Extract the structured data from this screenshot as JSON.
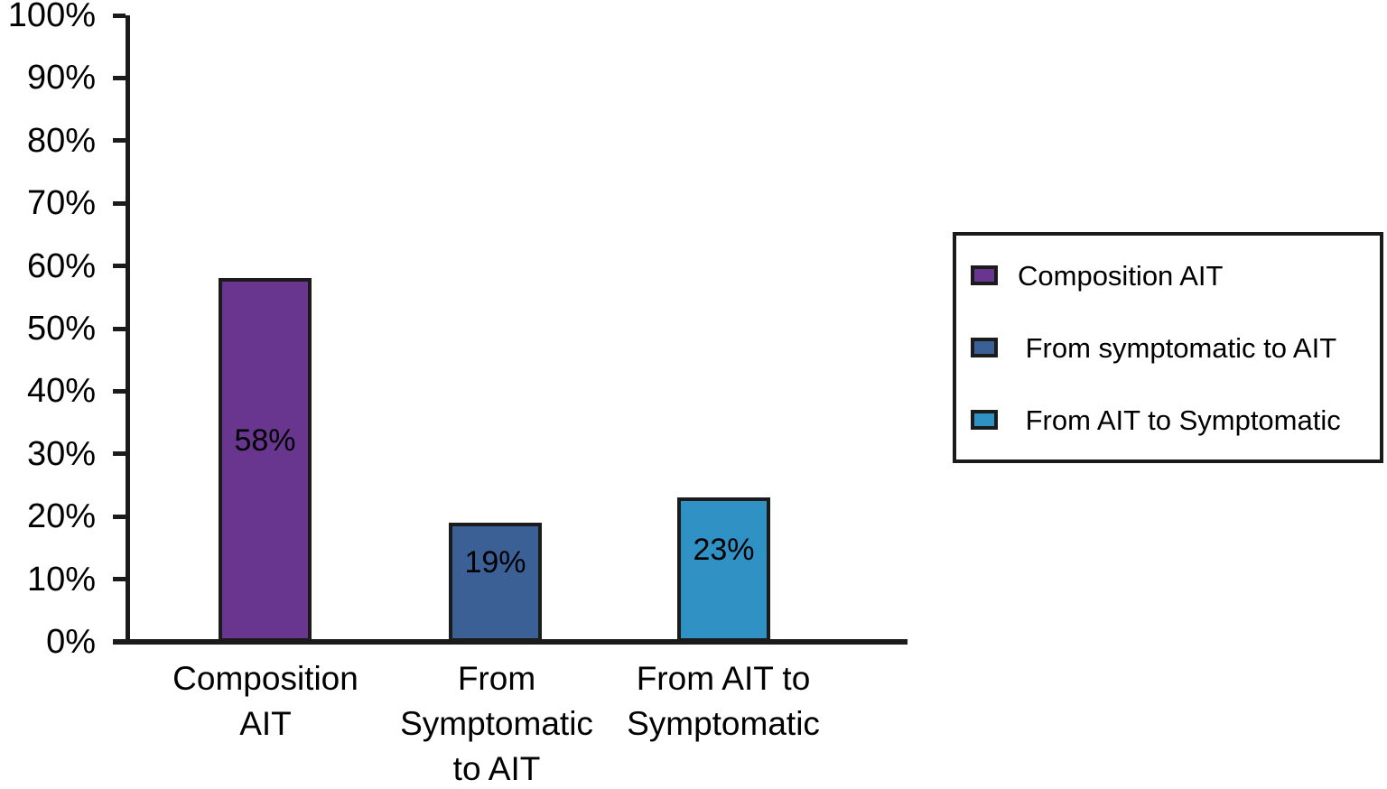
{
  "chart_data": {
    "type": "bar",
    "title": "",
    "xlabel": "",
    "ylabel": "",
    "ylim": [
      0,
      100
    ],
    "ytick_step": 10,
    "ytick_labels": [
      "0%",
      "10%",
      "20%",
      "30%",
      "40%",
      "50%",
      "60%",
      "70%",
      "80%",
      "90%",
      "100%"
    ],
    "grid": false,
    "categories": [
      [
        "Composition",
        "AIT"
      ],
      [
        "From",
        "Symptomatic",
        "to AIT"
      ],
      [
        "From AIT to",
        "Symptomatic"
      ]
    ],
    "values": [
      58,
      19,
      23
    ],
    "bar_labels": [
      "58%",
      "19%",
      "23%"
    ],
    "bar_colors": [
      "#69368F",
      "#3A6095",
      "#3092C4"
    ],
    "legend": {
      "position": "right",
      "entries": [
        {
          "label": "Composition AIT",
          "color": "#69368F"
        },
        {
          "label": " From symptomatic to AIT",
          "color": "#3A6095"
        },
        {
          "label": " From AIT to Symptomatic",
          "color": "#3092C4"
        }
      ]
    },
    "colors": {
      "axis": "#1b1b1b",
      "text": "#000000",
      "background": "#ffffff"
    }
  }
}
